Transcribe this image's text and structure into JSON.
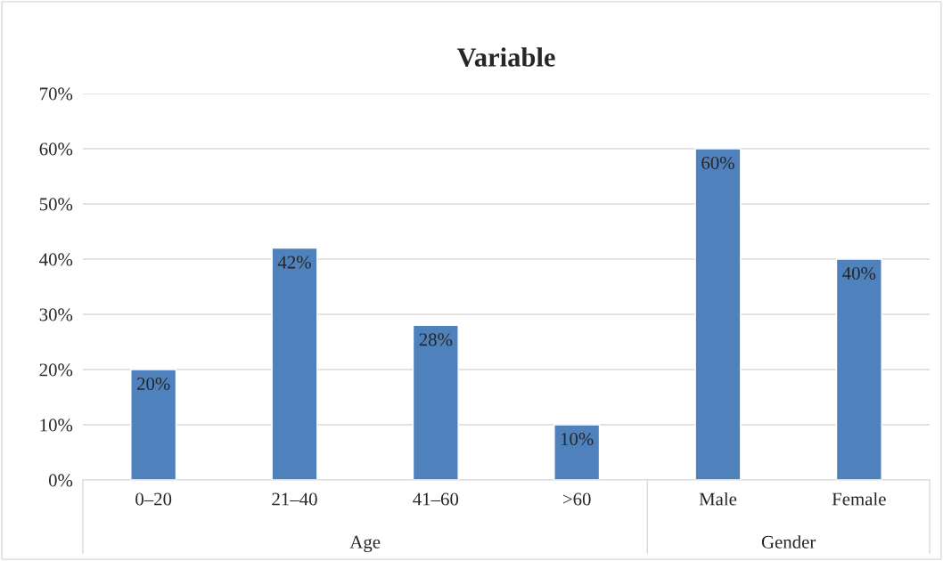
{
  "chart_data": {
    "type": "bar",
    "title": "Variable",
    "categories": [
      "0–20",
      "21–40",
      "41–60",
      ">60",
      "Male",
      "Female"
    ],
    "values": [
      20,
      42,
      28,
      10,
      60,
      40
    ],
    "color": "#4f81bd",
    "value_labels": [
      "20%",
      "42%",
      "28%",
      "10%",
      "60%",
      "40%"
    ],
    "ylim": [
      0,
      70
    ],
    "yticks": [
      {
        "value": 0,
        "label": "0%"
      },
      {
        "value": 10,
        "label": "10%"
      },
      {
        "value": 20,
        "label": "20%"
      },
      {
        "value": 30,
        "label": "30%"
      },
      {
        "value": 40,
        "label": "40%"
      },
      {
        "value": 50,
        "label": "50%"
      },
      {
        "value": 60,
        "label": "60%"
      },
      {
        "value": 70,
        "label": "70%"
      }
    ],
    "grid": "y",
    "legend": false,
    "annotations": [
      "Age",
      "Gender"
    ]
  }
}
